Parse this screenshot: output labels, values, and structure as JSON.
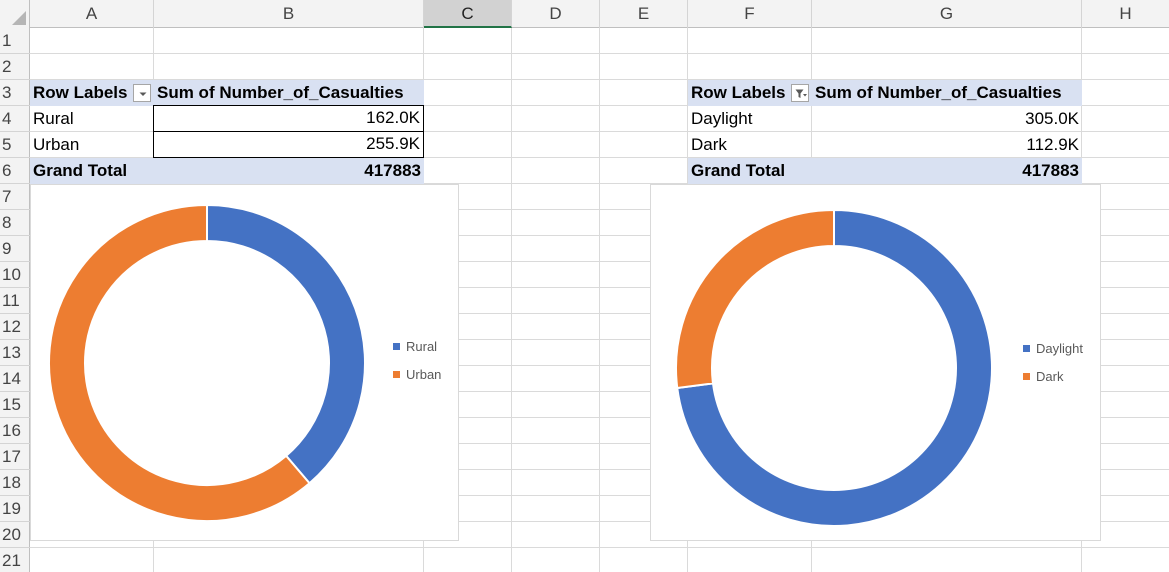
{
  "columns": [
    "A",
    "B",
    "C",
    "D",
    "E",
    "F",
    "G",
    "H"
  ],
  "rows": [
    "1",
    "2",
    "3",
    "4",
    "5",
    "6",
    "7",
    "8",
    "9",
    "10",
    "11",
    "12",
    "13",
    "14",
    "15",
    "16",
    "17",
    "18",
    "19",
    "20",
    "21"
  ],
  "pivot_left": {
    "header_label": "Row Labels",
    "header_value": "Sum of Number_of_Casualties",
    "rows": [
      {
        "label": "Rural",
        "value": "162.0K"
      },
      {
        "label": "Urban",
        "value": "255.9K"
      }
    ],
    "total_label": "Grand Total",
    "total_value": "417883",
    "filter_icon": "dropdown-arrow-icon"
  },
  "pivot_right": {
    "header_label": "Row Labels",
    "header_value": "Sum of Number_of_Casualties",
    "rows": [
      {
        "label": "Daylight",
        "value": "305.0K"
      },
      {
        "label": "Dark",
        "value": "112.9K"
      }
    ],
    "total_label": "Grand Total",
    "total_value": "417883",
    "filter_icon": "funnel-filter-icon"
  },
  "chart_data": [
    {
      "type": "pie",
      "style": "doughnut",
      "categories": [
        "Rural",
        "Urban"
      ],
      "values": [
        162.0,
        255.9
      ],
      "colors": [
        "#4472c4",
        "#ed7d31"
      ],
      "legend": "right",
      "legend_labels": [
        "Rural",
        "Urban"
      ]
    },
    {
      "type": "pie",
      "style": "doughnut",
      "categories": [
        "Daylight",
        "Dark"
      ],
      "values": [
        305.0,
        112.9
      ],
      "colors": [
        "#4472c4",
        "#ed7d31"
      ],
      "legend": "right",
      "legend_labels": [
        "Daylight",
        "Dark"
      ]
    }
  ],
  "colors": {
    "pivot_header_bg": "#d9e1f2",
    "selected_column_accent": "#217346"
  }
}
